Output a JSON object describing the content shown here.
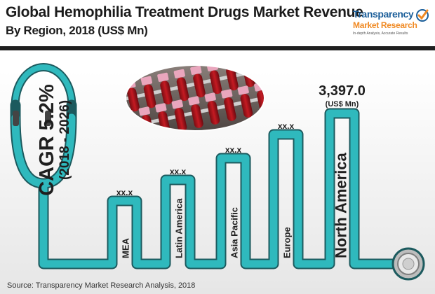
{
  "header": {
    "title_line_1": "Global Hemophilia Treatment Drugs Market Revenue",
    "title_line_2": "By Region, 2018 (US$ Mn)"
  },
  "logo": {
    "name_line_1": "Transparency",
    "name_line_2": "Market Research",
    "tagline": "In-depth Analysis, Accurate Results"
  },
  "cagr": {
    "value": "CAGR 5.2%",
    "period": "(2018 - 2026)"
  },
  "source": "Source: Transparency Market Research Analysis, 2018",
  "colors": {
    "tube_fill": "#2fb9bd",
    "tube_outline": "#1c5a5e",
    "text": "#1f1f1f"
  },
  "chart_data": {
    "type": "bar",
    "style": "pictorial stethoscope-tube bars",
    "title": "Global Hemophilia Treatment Drugs Market Revenue By Region, 2018 (US$ Mn)",
    "categories": [
      "MEA",
      "Latin America",
      "Asia Pacific",
      "Europe",
      "North America"
    ],
    "value_labels": [
      "xx.x",
      "xx.x",
      "xx.x",
      "xx.x",
      "3,397.0"
    ],
    "values": [
      null,
      null,
      null,
      null,
      3397.0
    ],
    "unit_label": "(US$ Mn)",
    "relative_heights": [
      0.42,
      0.56,
      0.7,
      0.86,
      1.0
    ],
    "legend": "none",
    "grid": false
  }
}
